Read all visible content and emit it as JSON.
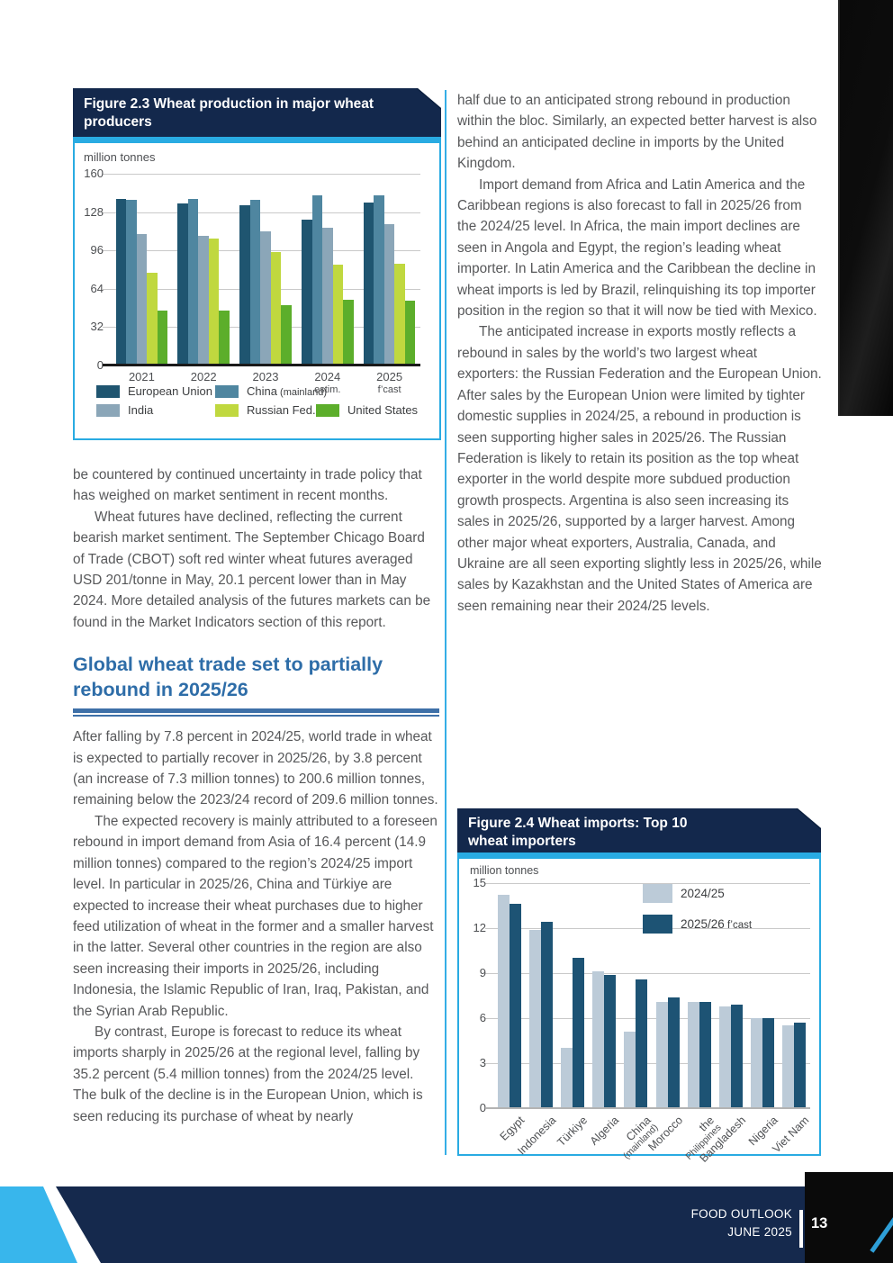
{
  "footer": {
    "publication": "FOOD OUTLOOK",
    "date": "JUNE 2025",
    "page_number": "13"
  },
  "colors": {
    "accent_cyan": "#29abe2",
    "header_navy": "#13284c",
    "footer_navy": "#15294d",
    "heading_blue": "#2e6da8",
    "body_text": "#57585a"
  },
  "left_column": {
    "p1": "be countered by continued uncertainty in trade policy that has weighed on market sentiment in recent months.",
    "p2": "Wheat futures have declined, reflecting the current bearish market sentiment. The September Chicago Board of Trade (CBOT) soft red winter wheat futures averaged USD 201/tonne in May, 20.1 percent lower than in May 2024. More detailed analysis of the futures markets can be found in the Market Indicators section of this report.",
    "heading": "Global wheat trade set to partially rebound in 2025/26",
    "p3": "After falling by 7.8 percent in 2024/25, world trade in wheat is expected to partially recover in 2025/26, by 3.8 percent (an increase of 7.3 million tonnes) to 200.6 million tonnes, remaining below the 2023/24 record of 209.6 million tonnes.",
    "p4": "The expected recovery is mainly attributed to a foreseen rebound in import demand from Asia of 16.4 percent (14.9 million tonnes) compared to the region’s 2024/25 import level. In particular in 2025/26, China and Türkiye are expected to increase their wheat purchases due to higher feed utilization of wheat in the former and a smaller harvest in the latter. Several other countries in the region are also seen increasing their imports in 2025/26, including Indonesia, the Islamic Republic of Iran, Iraq, Pakistan, and the Syrian Arab Republic.",
    "p5": "By contrast, Europe is forecast to reduce its wheat imports sharply in 2025/26 at the regional level, falling by 35.2 percent (5.4 million tonnes) from the 2024/25 level. The bulk of the decline is in the European Union, which is seen reducing its purchase of wheat by nearly"
  },
  "right_column": {
    "p1": "half due to an anticipated strong rebound in production within the bloc. Similarly, an expected better harvest is also behind an anticipated decline in imports by the United Kingdom.",
    "p2": "Import demand from Africa and Latin America and the Caribbean regions is also forecast to fall in 2025/26 from the 2024/25 level. In Africa, the main import declines are seen in Angola and Egypt, the region’s leading wheat importer. In Latin America and the Caribbean the decline in wheat imports is led by Brazil, relinquishing its top importer position in the region so that it will now be tied with Mexico.",
    "p3": "The anticipated increase in exports mostly reflects a rebound in sales by the world’s two largest wheat exporters: the Russian Federation and the European Union. After sales by the European Union were limited by tighter domestic supplies in 2024/25, a rebound in production is seen supporting higher sales in 2025/26. The Russian Federation is likely to retain its position as the top wheat exporter in the world despite more subdued production growth prospects. Argentina is also seen increasing its sales in 2025/26, supported by a larger harvest. Among other major wheat exporters, Australia, Canada, and Ukraine are all seen exporting slightly less in 2025/26, while sales by Kazakhstan and the United States of America are seen remaining near their 2024/25 levels."
  },
  "chart_data": [
    {
      "type": "bar",
      "title": "Figure 2.3 Wheat production in major wheat producers",
      "title_lines": [
        "Figure 2.3 Wheat production in major wheat",
        "producers"
      ],
      "ylabel": "million tonnes",
      "ylim": [
        0,
        160
      ],
      "yticks": [
        0,
        32,
        64,
        96,
        128,
        160
      ],
      "grid": true,
      "legend_position": "bottom",
      "categories": [
        "2021",
        "2022",
        "2023",
        "2024",
        "2025"
      ],
      "category_sublabels": [
        "",
        "",
        "",
        "estim.",
        "f’cast"
      ],
      "series": [
        {
          "name": "European Union",
          "legend_main": "European Union",
          "legend_sub": "",
          "color": "#1f5570",
          "values": [
            139,
            135,
            134,
            122,
            136
          ]
        },
        {
          "name": "China (mainland)",
          "legend_main": "China",
          "legend_sub": "(mainland)",
          "color": "#4f86a0",
          "values": [
            138,
            139,
            138,
            142,
            142
          ]
        },
        {
          "name": "India",
          "legend_main": "India",
          "legend_sub": "",
          "color": "#8ba6b8",
          "values": [
            110,
            108,
            112,
            115,
            118
          ]
        },
        {
          "name": "Russian Fed.",
          "legend_main": "Russian Fed.",
          "legend_sub": "",
          "color": "#c0d83f",
          "values": [
            77,
            106,
            95,
            84,
            85
          ]
        },
        {
          "name": "United States",
          "legend_main": "United States",
          "legend_sub": "",
          "color": "#5cae2b",
          "values": [
            46,
            46,
            50,
            55,
            54
          ]
        }
      ]
    },
    {
      "type": "bar",
      "title": "Figure 2.4 Wheat imports: Top 10 wheat importers",
      "title_lines": [
        "Figure 2.4 Wheat imports: Top 10",
        "wheat importers"
      ],
      "ylabel": "million tonnes",
      "ylim": [
        0,
        15
      ],
      "yticks": [
        0,
        3,
        6,
        9,
        12,
        15
      ],
      "grid": true,
      "legend_position": "top-right-inside",
      "categories": [
        {
          "l1": "Egypt",
          "l2": ""
        },
        {
          "l1": "Indonesia",
          "l2": ""
        },
        {
          "l1": "Türkiye",
          "l2": ""
        },
        {
          "l1": "Algeria",
          "l2": ""
        },
        {
          "l1": "China",
          "l2": "(mainland)"
        },
        {
          "l1": "Morocco",
          "l2": ""
        },
        {
          "l1": "the",
          "l2": "Philippines"
        },
        {
          "l1": "Bangladesh",
          "l2": ""
        },
        {
          "l1": "Nigeria",
          "l2": ""
        },
        {
          "l1": "Viet Nam",
          "l2": ""
        }
      ],
      "series": [
        {
          "name": "2024/25",
          "legend_main": "2024/25",
          "legend_sub": "",
          "color": "#bccbd8",
          "values": [
            14.2,
            11.9,
            4.0,
            9.1,
            5.1,
            7.1,
            7.1,
            6.8,
            6.0,
            5.5
          ]
        },
        {
          "name": "2025/26 f’cast",
          "legend_main": "2025/26",
          "legend_sub": "f’cast",
          "color": "#1d5374",
          "values": [
            13.6,
            12.4,
            10.0,
            8.9,
            8.6,
            7.4,
            7.1,
            6.9,
            6.0,
            5.7
          ]
        }
      ]
    }
  ]
}
